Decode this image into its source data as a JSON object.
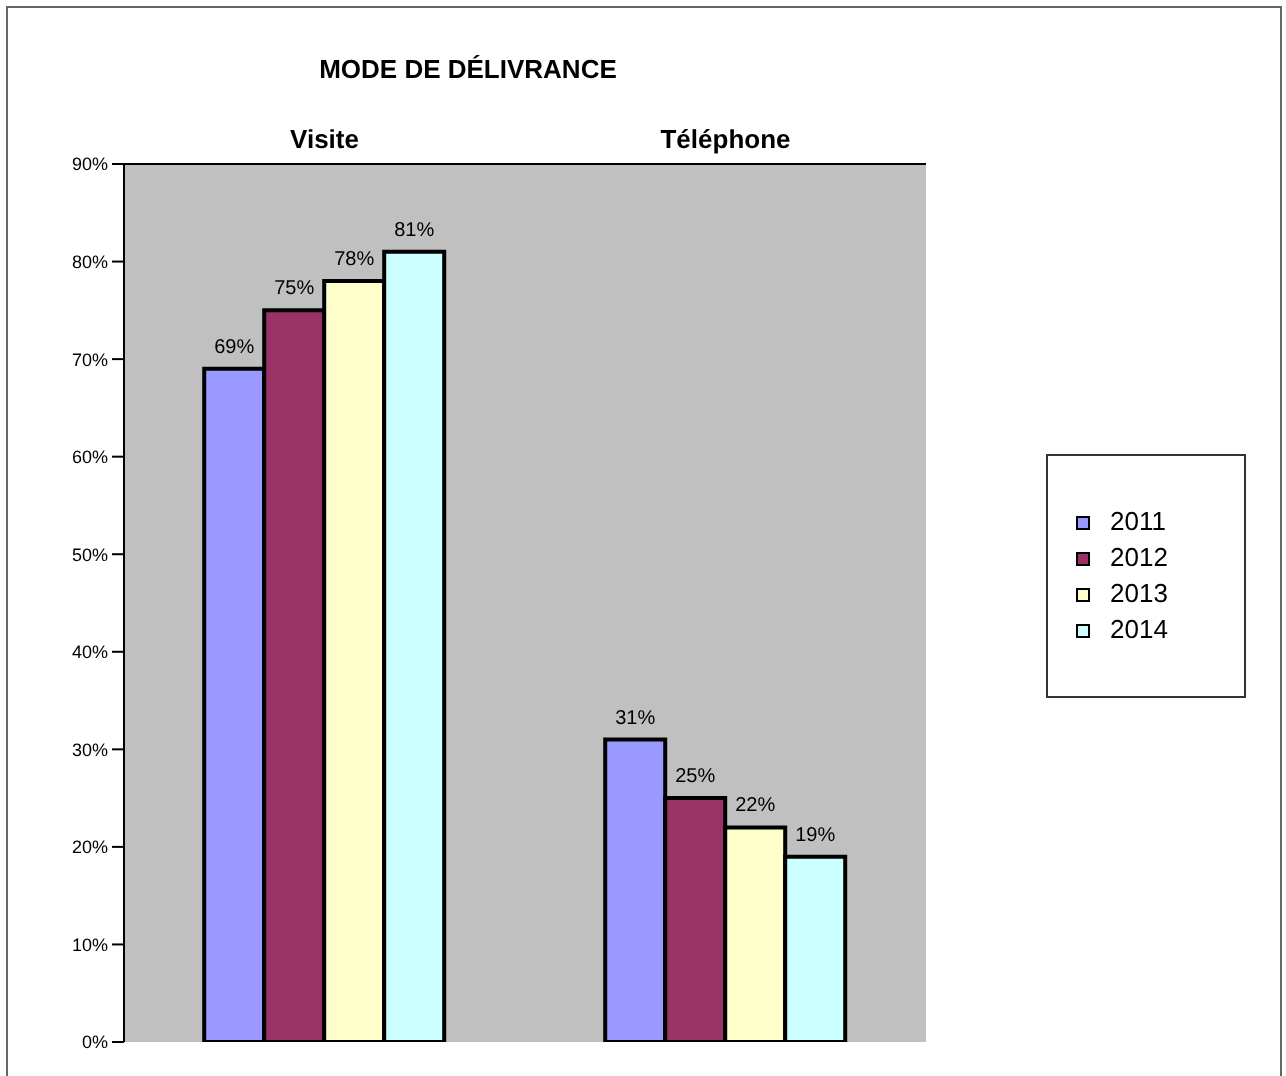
{
  "chart_data": {
    "type": "bar",
    "title": "MODE DE DÉLIVRANCE",
    "categories": [
      "Visite",
      "Téléphone"
    ],
    "series": [
      {
        "name": "2011",
        "color": "#9999ff",
        "values": [
          69,
          31
        ],
        "value_labels": [
          "69%",
          "31%"
        ]
      },
      {
        "name": "2012",
        "color": "#993366",
        "values": [
          75,
          25
        ],
        "value_labels": [
          "75%",
          "25%"
        ]
      },
      {
        "name": "2013",
        "color": "#ffffcc",
        "values": [
          78,
          22
        ],
        "value_labels": [
          "78%",
          "22%"
        ]
      },
      {
        "name": "2014",
        "color": "#ccffff",
        "values": [
          81,
          19
        ],
        "value_labels": [
          "81%",
          "19%"
        ]
      }
    ],
    "ylim": [
      0,
      90
    ],
    "yticks": [
      {
        "value": 0,
        "label": "0%"
      },
      {
        "value": 10,
        "label": "10%"
      },
      {
        "value": 20,
        "label": "20%"
      },
      {
        "value": 30,
        "label": "30%"
      },
      {
        "value": 40,
        "label": "40%"
      },
      {
        "value": 50,
        "label": "50%"
      },
      {
        "value": 60,
        "label": "60%"
      },
      {
        "value": 70,
        "label": "70%"
      },
      {
        "value": 80,
        "label": "80%"
      },
      {
        "value": 90,
        "label": "90%"
      }
    ],
    "grid": false,
    "legend": "right"
  }
}
